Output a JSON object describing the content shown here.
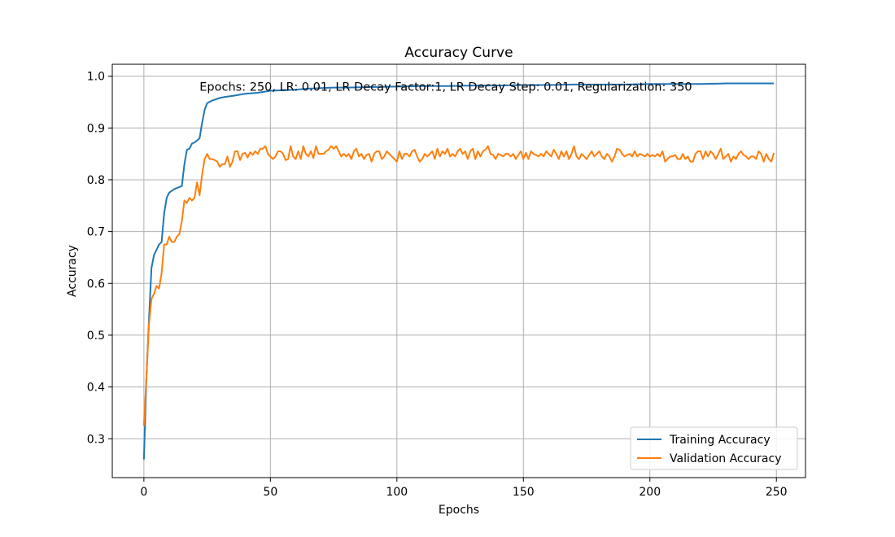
{
  "chart_data": {
    "type": "line",
    "title": "Accuracy Curve",
    "xlabel": "Epochs",
    "ylabel": "Accuracy",
    "xlim": [
      -12.5,
      261.5
    ],
    "ylim": [
      0.225,
      1.023
    ],
    "xticks": [
      0,
      50,
      100,
      150,
      200,
      250
    ],
    "yticks": [
      0.3,
      0.4,
      0.5,
      0.6,
      0.7,
      0.8,
      0.9,
      1.0
    ],
    "xtick_labels": [
      "0",
      "50",
      "100",
      "150",
      "200",
      "250"
    ],
    "ytick_labels": [
      "0.3",
      "0.4",
      "0.5",
      "0.6",
      "0.7",
      "0.8",
      "0.9",
      "1.0"
    ],
    "grid": true,
    "legend_position": "lower-right",
    "annotation": {
      "text": "Epochs: 250, LR: 0.01, LR Decay Factor:1, LR Decay Step: 0.01, Regularization: 350",
      "x": 22,
      "y": 0.98
    },
    "series": [
      {
        "name": "Training Accuracy",
        "color": "#1f77b4",
        "points": [
          [
            0,
            0.26
          ],
          [
            1,
            0.42
          ],
          [
            2,
            0.53
          ],
          [
            3,
            0.63
          ],
          [
            4,
            0.655
          ],
          [
            6,
            0.675
          ],
          [
            7,
            0.68
          ],
          [
            8,
            0.735
          ],
          [
            9,
            0.765
          ],
          [
            10,
            0.775
          ],
          [
            12,
            0.782
          ],
          [
            15,
            0.788
          ],
          [
            16,
            0.83
          ],
          [
            17,
            0.858
          ],
          [
            18,
            0.86
          ],
          [
            19,
            0.87
          ],
          [
            20,
            0.872
          ],
          [
            22,
            0.88
          ],
          [
            23,
            0.91
          ],
          [
            24,
            0.935
          ],
          [
            25,
            0.948
          ],
          [
            27,
            0.953
          ],
          [
            30,
            0.958
          ],
          [
            32,
            0.96
          ],
          [
            35,
            0.962
          ],
          [
            40,
            0.966
          ],
          [
            45,
            0.968
          ],
          [
            50,
            0.972
          ],
          [
            55,
            0.973
          ],
          [
            60,
            0.974
          ],
          [
            65,
            0.976
          ],
          [
            70,
            0.977
          ],
          [
            75,
            0.978
          ],
          [
            80,
            0.978
          ],
          [
            90,
            0.979
          ],
          [
            100,
            0.98
          ],
          [
            110,
            0.981
          ],
          [
            120,
            0.981
          ],
          [
            130,
            0.982
          ],
          [
            140,
            0.982
          ],
          [
            150,
            0.983
          ],
          [
            160,
            0.983
          ],
          [
            170,
            0.984
          ],
          [
            180,
            0.984
          ],
          [
            190,
            0.984
          ],
          [
            200,
            0.985
          ],
          [
            210,
            0.985
          ],
          [
            220,
            0.985
          ],
          [
            230,
            0.986
          ],
          [
            240,
            0.986
          ],
          [
            249,
            0.986
          ]
        ]
      },
      {
        "name": "Validation Accuracy",
        "color": "#ff7f0e",
        "points": [
          [
            0,
            0.325
          ],
          [
            1,
            0.42
          ],
          [
            2,
            0.52
          ],
          [
            3,
            0.57
          ],
          [
            4,
            0.58
          ],
          [
            5,
            0.595
          ],
          [
            6,
            0.59
          ],
          [
            7,
            0.62
          ],
          [
            8,
            0.675
          ],
          [
            9,
            0.675
          ],
          [
            10,
            0.69
          ],
          [
            11,
            0.68
          ],
          [
            12,
            0.68
          ],
          [
            13,
            0.69
          ],
          [
            14,
            0.695
          ],
          [
            15,
            0.72
          ],
          [
            16,
            0.76
          ],
          [
            17,
            0.755
          ],
          [
            18,
            0.765
          ],
          [
            19,
            0.76
          ],
          [
            20,
            0.765
          ],
          [
            21,
            0.795
          ],
          [
            22,
            0.77
          ],
          [
            23,
            0.81
          ],
          [
            24,
            0.84
          ],
          [
            25,
            0.85
          ],
          [
            26,
            0.84
          ],
          [
            27,
            0.84
          ],
          [
            28,
            0.838
          ],
          [
            29,
            0.835
          ],
          [
            30,
            0.825
          ],
          [
            31,
            0.83
          ],
          [
            32,
            0.83
          ],
          [
            33,
            0.845
          ],
          [
            34,
            0.825
          ],
          [
            35,
            0.835
          ],
          [
            36,
            0.855
          ],
          [
            37,
            0.855
          ],
          [
            38,
            0.838
          ],
          [
            39,
            0.85
          ],
          [
            40,
            0.852
          ],
          [
            41,
            0.843
          ],
          [
            42,
            0.853
          ],
          [
            43,
            0.848
          ],
          [
            44,
            0.855
          ],
          [
            45,
            0.85
          ],
          [
            46,
            0.86
          ],
          [
            47,
            0.86
          ],
          [
            48,
            0.865
          ],
          [
            49,
            0.85
          ],
          [
            50,
            0.845
          ],
          [
            51,
            0.84
          ],
          [
            52,
            0.845
          ],
          [
            53,
            0.855
          ],
          [
            54,
            0.855
          ],
          [
            55,
            0.85
          ],
          [
            56,
            0.838
          ],
          [
            57,
            0.84
          ],
          [
            58,
            0.865
          ],
          [
            59,
            0.845
          ],
          [
            60,
            0.84
          ],
          [
            61,
            0.855
          ],
          [
            62,
            0.84
          ],
          [
            63,
            0.865
          ],
          [
            64,
            0.85
          ],
          [
            65,
            0.845
          ],
          [
            66,
            0.855
          ],
          [
            67,
            0.842
          ],
          [
            68,
            0.865
          ],
          [
            69,
            0.85
          ],
          [
            70,
            0.85
          ],
          [
            71,
            0.85
          ],
          [
            72,
            0.855
          ],
          [
            73,
            0.858
          ],
          [
            74,
            0.865
          ],
          [
            75,
            0.86
          ],
          [
            76,
            0.865
          ],
          [
            77,
            0.855
          ],
          [
            78,
            0.845
          ],
          [
            79,
            0.85
          ],
          [
            80,
            0.845
          ],
          [
            81,
            0.85
          ],
          [
            82,
            0.84
          ],
          [
            83,
            0.855
          ],
          [
            84,
            0.86
          ],
          [
            85,
            0.845
          ],
          [
            86,
            0.85
          ],
          [
            87,
            0.84
          ],
          [
            88,
            0.848
          ],
          [
            89,
            0.85
          ],
          [
            90,
            0.835
          ],
          [
            91,
            0.85
          ],
          [
            92,
            0.855
          ],
          [
            93,
            0.855
          ],
          [
            94,
            0.84
          ],
          [
            95,
            0.845
          ],
          [
            96,
            0.855
          ],
          [
            97,
            0.85
          ],
          [
            98,
            0.845
          ],
          [
            99,
            0.84
          ],
          [
            100,
            0.835
          ],
          [
            101,
            0.855
          ],
          [
            102,
            0.84
          ],
          [
            103,
            0.85
          ],
          [
            104,
            0.85
          ],
          [
            105,
            0.845
          ],
          [
            106,
            0.855
          ],
          [
            107,
            0.858
          ],
          [
            108,
            0.845
          ],
          [
            109,
            0.835
          ],
          [
            110,
            0.84
          ],
          [
            111,
            0.85
          ],
          [
            112,
            0.845
          ],
          [
            113,
            0.85
          ],
          [
            114,
            0.855
          ],
          [
            115,
            0.84
          ],
          [
            116,
            0.86
          ],
          [
            117,
            0.845
          ],
          [
            118,
            0.855
          ],
          [
            119,
            0.85
          ],
          [
            120,
            0.86
          ],
          [
            121,
            0.845
          ],
          [
            122,
            0.85
          ],
          [
            123,
            0.845
          ],
          [
            124,
            0.855
          ],
          [
            125,
            0.86
          ],
          [
            126,
            0.85
          ],
          [
            127,
            0.855
          ],
          [
            128,
            0.84
          ],
          [
            129,
            0.855
          ],
          [
            130,
            0.86
          ],
          [
            131,
            0.84
          ],
          [
            132,
            0.855
          ],
          [
            133,
            0.845
          ],
          [
            134,
            0.855
          ],
          [
            135,
            0.858
          ],
          [
            136,
            0.865
          ],
          [
            137,
            0.85
          ],
          [
            138,
            0.848
          ],
          [
            139,
            0.84
          ],
          [
            140,
            0.85
          ],
          [
            141,
            0.848
          ],
          [
            142,
            0.845
          ],
          [
            143,
            0.85
          ],
          [
            144,
            0.85
          ],
          [
            145,
            0.845
          ],
          [
            146,
            0.85
          ],
          [
            147,
            0.84
          ],
          [
            148,
            0.848
          ],
          [
            149,
            0.855
          ],
          [
            150,
            0.84
          ],
          [
            151,
            0.852
          ],
          [
            152,
            0.84
          ],
          [
            153,
            0.855
          ],
          [
            154,
            0.85
          ],
          [
            155,
            0.848
          ],
          [
            156,
            0.845
          ],
          [
            157,
            0.85
          ],
          [
            158,
            0.845
          ],
          [
            159,
            0.855
          ],
          [
            160,
            0.85
          ],
          [
            161,
            0.845
          ],
          [
            162,
            0.858
          ],
          [
            163,
            0.85
          ],
          [
            164,
            0.84
          ],
          [
            165,
            0.855
          ],
          [
            166,
            0.845
          ],
          [
            167,
            0.855
          ],
          [
            168,
            0.84
          ],
          [
            169,
            0.85
          ],
          [
            170,
            0.865
          ],
          [
            171,
            0.845
          ],
          [
            172,
            0.84
          ],
          [
            173,
            0.85
          ],
          [
            174,
            0.845
          ],
          [
            175,
            0.84
          ],
          [
            176,
            0.848
          ],
          [
            177,
            0.855
          ],
          [
            178,
            0.845
          ],
          [
            179,
            0.85
          ],
          [
            180,
            0.855
          ],
          [
            181,
            0.845
          ],
          [
            182,
            0.84
          ],
          [
            183,
            0.85
          ],
          [
            184,
            0.845
          ],
          [
            185,
            0.835
          ],
          [
            186,
            0.845
          ],
          [
            187,
            0.86
          ],
          [
            188,
            0.858
          ],
          [
            189,
            0.85
          ],
          [
            190,
            0.845
          ],
          [
            191,
            0.848
          ],
          [
            192,
            0.85
          ],
          [
            193,
            0.845
          ],
          [
            194,
            0.855
          ],
          [
            195,
            0.845
          ],
          [
            196,
            0.85
          ],
          [
            197,
            0.848
          ],
          [
            198,
            0.845
          ],
          [
            199,
            0.85
          ],
          [
            200,
            0.845
          ],
          [
            201,
            0.848
          ],
          [
            202,
            0.845
          ],
          [
            203,
            0.85
          ],
          [
            204,
            0.845
          ],
          [
            205,
            0.855
          ],
          [
            206,
            0.835
          ],
          [
            207,
            0.84
          ],
          [
            208,
            0.845
          ],
          [
            209,
            0.845
          ],
          [
            210,
            0.848
          ],
          [
            211,
            0.84
          ],
          [
            212,
            0.84
          ],
          [
            213,
            0.85
          ],
          [
            214,
            0.84
          ],
          [
            215,
            0.845
          ],
          [
            216,
            0.835
          ],
          [
            217,
            0.835
          ],
          [
            218,
            0.85
          ],
          [
            219,
            0.855
          ],
          [
            220,
            0.855
          ],
          [
            221,
            0.84
          ],
          [
            222,
            0.855
          ],
          [
            223,
            0.845
          ],
          [
            224,
            0.855
          ],
          [
            225,
            0.85
          ],
          [
            226,
            0.84
          ],
          [
            227,
            0.85
          ],
          [
            228,
            0.86
          ],
          [
            229,
            0.84
          ],
          [
            230,
            0.845
          ],
          [
            231,
            0.85
          ],
          [
            232,
            0.835
          ],
          [
            233,
            0.845
          ],
          [
            234,
            0.84
          ],
          [
            235,
            0.85
          ],
          [
            236,
            0.855
          ],
          [
            237,
            0.848
          ],
          [
            238,
            0.845
          ],
          [
            239,
            0.84
          ],
          [
            240,
            0.845
          ],
          [
            241,
            0.845
          ],
          [
            242,
            0.84
          ],
          [
            243,
            0.855
          ],
          [
            244,
            0.85
          ],
          [
            245,
            0.835
          ],
          [
            246,
            0.85
          ],
          [
            247,
            0.84
          ],
          [
            248,
            0.835
          ],
          [
            249,
            0.852
          ]
        ]
      }
    ]
  }
}
